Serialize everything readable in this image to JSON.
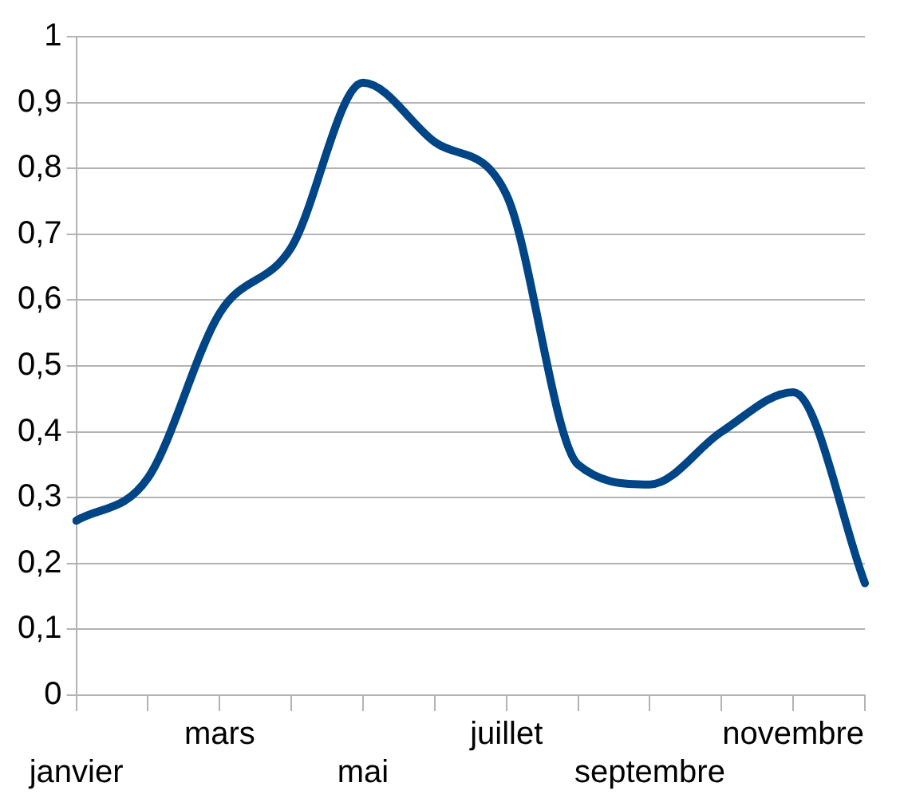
{
  "chart_data": {
    "type": "line",
    "categories": [
      "janvier",
      null,
      "mars",
      null,
      "mai",
      null,
      "juillet",
      null,
      "septembre",
      null,
      "novembre",
      null
    ],
    "series": [
      {
        "color": "#004586",
        "values": [
          0.265,
          0.33,
          0.58,
          0.68,
          0.93,
          0.84,
          0.76,
          0.35,
          0.32,
          0.4,
          0.46,
          0.17
        ]
      }
    ],
    "ylim": [
      0,
      1
    ],
    "yticks": [
      {
        "value": 0,
        "label": "0"
      },
      {
        "value": 0.1,
        "label": "0,1"
      },
      {
        "value": 0.2,
        "label": "0,2"
      },
      {
        "value": 0.3,
        "label": "0,3"
      },
      {
        "value": 0.4,
        "label": "0,4"
      },
      {
        "value": 0.5,
        "label": "0,5"
      },
      {
        "value": 0.6,
        "label": "0,6"
      },
      {
        "value": 0.7,
        "label": "0,7"
      },
      {
        "value": 0.8,
        "label": "0,8"
      },
      {
        "value": 0.9,
        "label": "0,9"
      },
      {
        "value": 1,
        "label": "1"
      }
    ],
    "grid": "y",
    "legend": false,
    "marker": "none",
    "line_style": "solid"
  }
}
